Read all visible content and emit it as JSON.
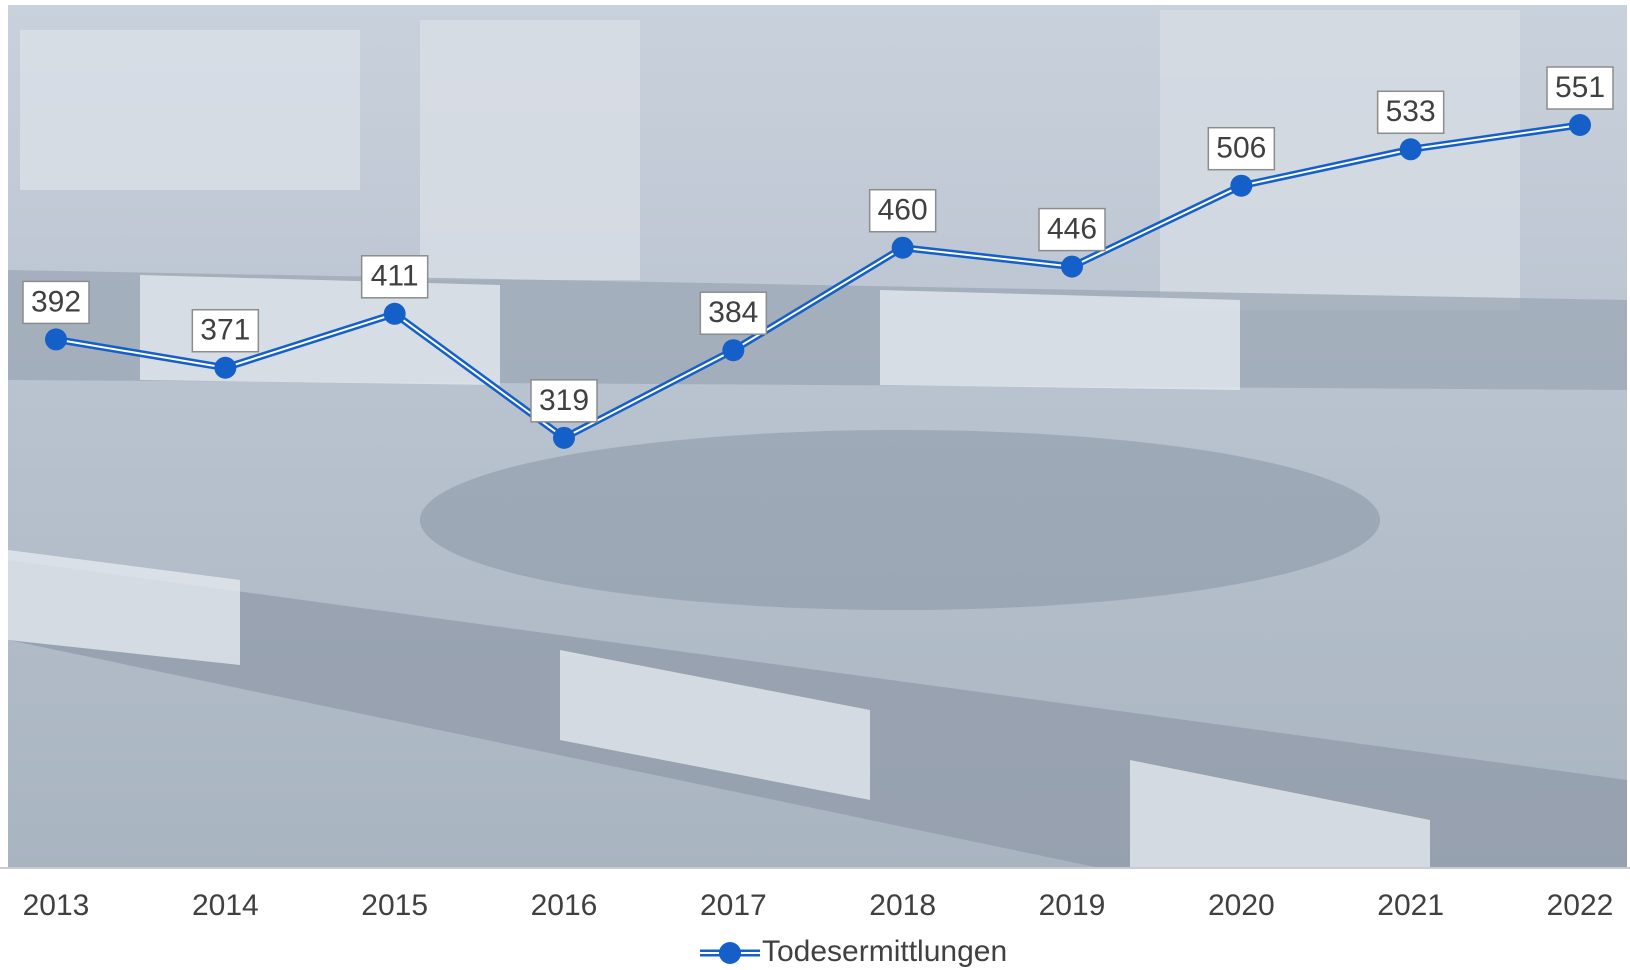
{
  "chart_data": {
    "type": "line",
    "categories": [
      "2013",
      "2014",
      "2015",
      "2016",
      "2017",
      "2018",
      "2019",
      "2020",
      "2021",
      "2022"
    ],
    "series": [
      {
        "name": "Todesermittlungen",
        "color": "#1560c8",
        "values": [
          392,
          371,
          411,
          319,
          384,
          460,
          446,
          506,
          533,
          551
        ]
      }
    ],
    "ylim": [
      0,
      640
    ],
    "legend": "bottom"
  }
}
